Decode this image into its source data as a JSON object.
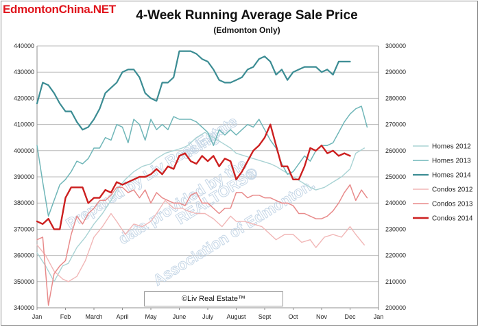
{
  "site": {
    "logo_text": "EdmontonChina.NET"
  },
  "chart_data": {
    "type": "line",
    "title": "4-Week Running Average Sale Price",
    "subtitle": "(Edmonton Only)",
    "x_tick_labels": [
      "Jan",
      "Feb",
      "March",
      "April",
      "May",
      "June",
      "July",
      "August",
      "Sept",
      "Oct",
      "Nov",
      "Dec",
      "Jan"
    ],
    "y_left": {
      "min": 340000,
      "max": 440000,
      "step": 10000,
      "tick_labels": [
        "340000",
        "350000",
        "360000",
        "370000",
        "380000",
        "390000",
        "400000",
        "410000",
        "420000",
        "430000",
        "440000"
      ]
    },
    "y_right": {
      "min": 200000,
      "max": 300000,
      "step": 10000,
      "tick_labels": [
        "200000",
        "210000",
        "220000",
        "230000",
        "240000",
        "250000",
        "260000",
        "270000",
        "280000",
        "290000",
        "300000"
      ]
    },
    "x_note": "x values are months from the start of January (0 = Jan 1, 12 = next Jan 1)",
    "grid": true,
    "legend_position": "right",
    "series": [
      {
        "name": "Homes 2012",
        "axis": "left",
        "color": "#a9d3d4",
        "width": 1.4,
        "x": [
          0.0,
          0.3,
          0.6,
          0.9,
          1.1,
          1.4,
          1.7,
          2.0,
          2.3,
          2.6,
          2.8,
          3.1,
          3.4,
          3.7,
          4.0,
          4.2,
          4.5,
          4.8,
          5.1,
          5.3,
          5.6,
          5.9,
          6.2,
          6.5,
          6.8,
          7.0,
          7.3,
          7.6,
          7.9,
          8.2,
          8.4,
          8.7,
          9.0,
          9.3,
          9.6,
          9.8,
          10.1,
          10.4,
          10.7,
          11.0,
          11.2,
          11.5
        ],
        "y": [
          361000,
          356000,
          350000,
          356000,
          357000,
          363000,
          367000,
          372000,
          376000,
          381000,
          385000,
          389000,
          392000,
          394000,
          395000,
          397000,
          399000,
          400000,
          401000,
          402000,
          405000,
          407000,
          405000,
          403000,
          401000,
          399000,
          398000,
          397000,
          396000,
          395000,
          394000,
          392000,
          390000,
          388000,
          386000,
          385000,
          386000,
          388000,
          390000,
          393000,
          399000,
          401000
        ]
      },
      {
        "name": "Homes 2013",
        "axis": "left",
        "color": "#6fb6b8",
        "width": 1.5,
        "x": [
          0.0,
          0.2,
          0.4,
          0.6,
          0.8,
          1.0,
          1.2,
          1.4,
          1.6,
          1.8,
          2.0,
          2.2,
          2.4,
          2.6,
          2.8,
          3.0,
          3.2,
          3.4,
          3.6,
          3.8,
          4.0,
          4.2,
          4.4,
          4.6,
          4.8,
          5.0,
          5.2,
          5.4,
          5.6,
          5.8,
          6.0,
          6.2,
          6.4,
          6.6,
          6.8,
          7.0,
          7.2,
          7.4,
          7.6,
          7.8,
          8.0,
          8.2,
          8.4,
          8.6,
          8.8,
          9.0,
          9.2,
          9.4,
          9.6,
          9.8,
          10.0,
          10.2,
          10.4,
          10.6,
          10.8,
          11.0,
          11.2,
          11.4,
          11.6
        ],
        "y": [
          402000,
          388000,
          375000,
          381000,
          387000,
          389000,
          392000,
          396000,
          395000,
          397000,
          401000,
          401000,
          405000,
          404000,
          410000,
          409000,
          403000,
          412000,
          410000,
          404000,
          412000,
          408000,
          410000,
          408000,
          413000,
          412000,
          412000,
          412000,
          411000,
          409000,
          407000,
          402000,
          408000,
          406000,
          408000,
          406000,
          408000,
          410000,
          409000,
          412000,
          408000,
          404000,
          401000,
          395000,
          391000,
          392000,
          395000,
          398000,
          396000,
          400000,
          402000,
          402000,
          403000,
          407000,
          411000,
          414000,
          416000,
          417000,
          409000
        ]
      },
      {
        "name": "Homes 2014",
        "axis": "left",
        "color": "#3b8c93",
        "width": 2.2,
        "x": [
          0.0,
          0.2,
          0.4,
          0.6,
          0.8,
          1.0,
          1.2,
          1.4,
          1.6,
          1.8,
          2.0,
          2.2,
          2.4,
          2.6,
          2.8,
          3.0,
          3.2,
          3.4,
          3.6,
          3.8,
          4.0,
          4.2,
          4.4,
          4.6,
          4.8,
          5.0,
          5.2,
          5.4,
          5.6,
          5.8,
          6.0,
          6.2,
          6.4,
          6.6,
          6.8,
          7.0,
          7.2,
          7.4,
          7.6,
          7.8,
          8.0,
          8.2,
          8.4,
          8.6,
          8.8,
          9.0,
          9.2,
          9.4,
          9.6,
          9.8,
          10.0,
          10.2,
          10.4,
          10.6,
          10.8,
          11.0
        ],
        "y": [
          418000,
          426000,
          425000,
          422000,
          418000,
          415000,
          415000,
          411000,
          408000,
          409000,
          412000,
          416000,
          422000,
          424000,
          426000,
          430000,
          431000,
          431000,
          428000,
          422000,
          420000,
          419000,
          426000,
          426000,
          428000,
          438000,
          438000,
          438000,
          437000,
          435000,
          434000,
          431000,
          427000,
          426000,
          426000,
          427000,
          428000,
          431000,
          432000,
          435000,
          436000,
          434000,
          429000,
          431000,
          427000,
          430000,
          431000,
          432000,
          432000,
          432000,
          430000,
          431000,
          429000,
          434000,
          434000,
          434000
        ]
      },
      {
        "name": "Condos 2012",
        "axis": "right",
        "color": "#f1b6b6",
        "width": 1.4,
        "x": [
          0.0,
          0.3,
          0.6,
          0.9,
          1.1,
          1.4,
          1.7,
          2.0,
          2.3,
          2.6,
          2.8,
          3.1,
          3.4,
          3.7,
          4.0,
          4.2,
          4.5,
          4.8,
          5.1,
          5.3,
          5.6,
          5.9,
          6.2,
          6.5,
          6.8,
          7.0,
          7.3,
          7.6,
          7.9,
          8.2,
          8.4,
          8.7,
          9.0,
          9.3,
          9.6,
          9.8,
          10.1,
          10.4,
          10.7,
          11.0,
          11.2,
          11.5
        ],
        "y": [
          224000,
          220000,
          214000,
          211000,
          210000,
          212000,
          218000,
          227000,
          231000,
          236000,
          233000,
          228000,
          232000,
          231000,
          233000,
          236000,
          241000,
          238000,
          238000,
          237000,
          236000,
          236000,
          234000,
          231000,
          235000,
          233000,
          233000,
          232000,
          231000,
          228000,
          226000,
          228000,
          228000,
          225000,
          226000,
          223000,
          227000,
          228000,
          227000,
          231000,
          228000,
          224000
        ]
      },
      {
        "name": "Condos 2013",
        "axis": "right",
        "color": "#e88a8a",
        "width": 1.5,
        "x": [
          0.0,
          0.2,
          0.4,
          0.6,
          0.8,
          1.0,
          1.2,
          1.4,
          1.6,
          1.8,
          2.0,
          2.2,
          2.4,
          2.6,
          2.8,
          3.0,
          3.2,
          3.4,
          3.6,
          3.8,
          4.0,
          4.2,
          4.4,
          4.6,
          4.8,
          5.0,
          5.2,
          5.4,
          5.6,
          5.8,
          6.0,
          6.2,
          6.4,
          6.6,
          6.8,
          7.0,
          7.2,
          7.4,
          7.6,
          7.8,
          8.0,
          8.2,
          8.4,
          8.6,
          8.8,
          9.0,
          9.2,
          9.4,
          9.6,
          9.8,
          10.0,
          10.2,
          10.4,
          10.6,
          10.8,
          11.0,
          11.2,
          11.4,
          11.6
        ],
        "y": [
          226000,
          227000,
          201000,
          213000,
          216000,
          218000,
          228000,
          235000,
          232000,
          236000,
          238000,
          241000,
          241000,
          243000,
          246000,
          246000,
          244000,
          245000,
          242000,
          245000,
          240000,
          244000,
          242000,
          241000,
          240000,
          240000,
          239000,
          243000,
          244000,
          240000,
          240000,
          238000,
          236000,
          238000,
          238000,
          244000,
          244000,
          242000,
          243000,
          243000,
          242000,
          242000,
          241000,
          240000,
          240000,
          239000,
          236000,
          236000,
          235000,
          234000,
          234000,
          235000,
          237000,
          240000,
          244000,
          247000,
          241000,
          245000,
          242000
        ]
      },
      {
        "name": "Condos 2014",
        "axis": "right",
        "color": "#cc1f1f",
        "width": 2.4,
        "x": [
          0.0,
          0.2,
          0.4,
          0.6,
          0.8,
          1.0,
          1.2,
          1.4,
          1.6,
          1.8,
          2.0,
          2.2,
          2.4,
          2.6,
          2.8,
          3.0,
          3.2,
          3.4,
          3.6,
          3.8,
          4.0,
          4.2,
          4.4,
          4.6,
          4.8,
          5.0,
          5.2,
          5.4,
          5.6,
          5.8,
          6.0,
          6.2,
          6.4,
          6.6,
          6.8,
          7.0,
          7.2,
          7.4,
          7.6,
          7.8,
          8.0,
          8.2,
          8.4,
          8.6,
          8.8,
          9.0,
          9.2,
          9.4,
          9.6,
          9.8,
          10.0,
          10.2,
          10.4,
          10.6,
          10.8,
          11.0
        ],
        "y": [
          233000,
          232000,
          234000,
          230000,
          230000,
          242000,
          246000,
          246000,
          246000,
          240000,
          242000,
          242000,
          245000,
          244000,
          248000,
          247000,
          248000,
          249000,
          250000,
          250000,
          251000,
          253000,
          251000,
          254000,
          253000,
          258000,
          259000,
          256000,
          255000,
          258000,
          256000,
          258000,
          254000,
          257000,
          256000,
          249000,
          252000,
          256000,
          260000,
          262000,
          265000,
          270000,
          262000,
          254000,
          254000,
          249000,
          249000,
          254000,
          261000,
          260000,
          262000,
          259000,
          260000,
          258000,
          259000,
          258000
        ]
      }
    ],
    "legend": [
      "Homes 2012",
      "Homes 2013",
      "Homes 2014",
      "Condos 2012",
      "Condos 2013",
      "Condos 2014"
    ],
    "watermark_lines": [
      "Prepared by Liv Real Estate",
      "using",
      "data provided by the",
      "REALTORS®",
      "Association of Edmonton."
    ],
    "copyright": "©Liv Real Estate™"
  }
}
